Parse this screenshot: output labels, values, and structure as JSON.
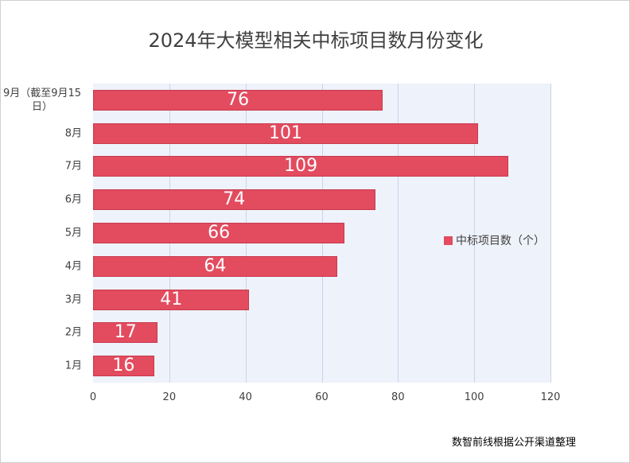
{
  "chart_data": {
    "type": "bar",
    "orientation": "horizontal",
    "title": "2024年大模型相关中标项目数月份变化",
    "categories": [
      "9月（截至9月15日）",
      "8月",
      "7月",
      "6月",
      "5月",
      "4月",
      "3月",
      "2月",
      "1月"
    ],
    "series": [
      {
        "name": "中标项目数（个）",
        "values": [
          76,
          101,
          109,
          74,
          66,
          64,
          41,
          17,
          16
        ],
        "color": "#e34b5f"
      }
    ],
    "xlim": [
      0,
      120
    ],
    "xticks": [
      "0",
      "20",
      "40",
      "60",
      "80",
      "100",
      "120"
    ],
    "grid": true,
    "legend": "right",
    "plot_background": "#eef2fb"
  },
  "source": "数智前线根据公开渠道整理"
}
